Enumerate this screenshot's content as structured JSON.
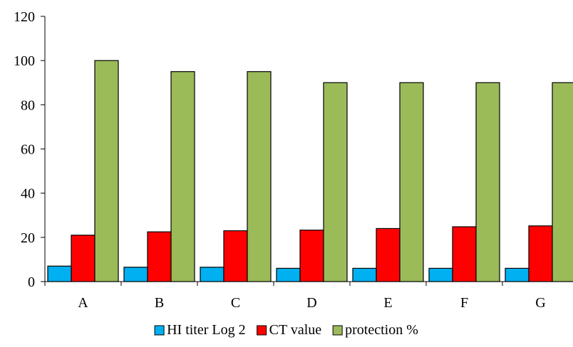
{
  "chart_data": {
    "type": "bar",
    "categories": [
      "A",
      "B",
      "C",
      "D",
      "E",
      "F",
      "G"
    ],
    "series": [
      {
        "name": "HI titer Log 2",
        "color": "#00B0F0",
        "values": [
          7,
          6.5,
          6.5,
          6,
          6,
          6,
          6
        ]
      },
      {
        "name": "CT value",
        "color": "#FF0000",
        "values": [
          21,
          22.5,
          23,
          23.3,
          24,
          24.8,
          25.2
        ]
      },
      {
        "name": "protection %",
        "color": "#9BBB59",
        "values": [
          100,
          95,
          95,
          90,
          90,
          90,
          90
        ]
      }
    ],
    "ylim": [
      0,
      120
    ],
    "yticks": [
      0,
      20,
      40,
      60,
      80,
      100,
      120
    ],
    "title": "",
    "xlabel": "",
    "ylabel": "",
    "grid": false,
    "legend_position": "bottom"
  }
}
